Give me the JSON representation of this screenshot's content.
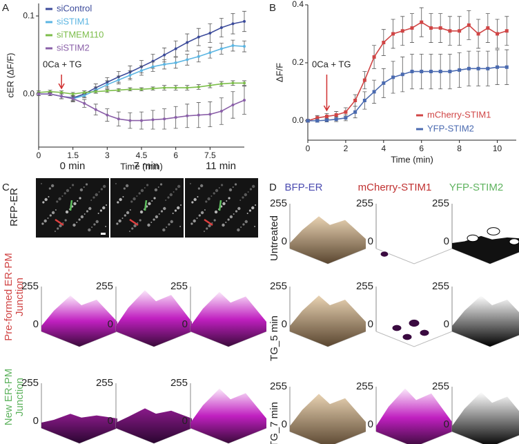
{
  "panel_labels": [
    "A",
    "B",
    "C",
    "D"
  ],
  "chart_data": [
    {
      "type": "line",
      "ylabel": "cER (ΔF/F)",
      "xlabel": "Time (min)",
      "x": [
        0,
        0.5,
        1,
        1.5,
        2,
        2.5,
        3,
        3.5,
        4,
        4.5,
        5,
        5.5,
        6,
        6.5,
        7,
        7.5,
        8,
        8.5,
        9
      ],
      "xlim": [
        0,
        9
      ],
      "xticks": [
        0,
        1.5,
        3,
        4.5,
        6,
        7.5
      ],
      "ylim": [
        -0.068,
        0.116
      ],
      "yticks": [
        {
          "value": 0,
          "label": "0.0"
        },
        0.1
      ],
      "legend": "upper left",
      "marker": "circle",
      "annotation": {
        "text": "0Ca + TG",
        "x": 1
      },
      "series": [
        {
          "name": "siControl",
          "color": "#3c4b9b",
          "values": [
            0,
            0,
            -0.003,
            -0.005,
            0,
            0.008,
            0.015,
            0.022,
            0.028,
            0.035,
            0.042,
            0.05,
            0.058,
            0.066,
            0.073,
            0.078,
            0.085,
            0.09,
            0.093
          ],
          "errors": [
            0.002,
            0.002,
            0.003,
            0.003,
            0.004,
            0.005,
            0.006,
            0.007,
            0.008,
            0.008,
            0.009,
            0.009,
            0.01,
            0.011,
            0.011,
            0.012,
            0.012,
            0.013,
            0.013
          ]
        },
        {
          "name": "siSTIM1",
          "color": "#5bb5e2",
          "values": [
            0,
            0,
            -0.003,
            -0.006,
            -0.002,
            0.005,
            0.012,
            0.018,
            0.024,
            0.03,
            0.035,
            0.038,
            0.04,
            0.044,
            0.048,
            0.053,
            0.058,
            0.062,
            0.061
          ],
          "errors": [
            0.002,
            0.002,
            0.003,
            0.003,
            0.003,
            0.004,
            0.005,
            0.005,
            0.006,
            0.006,
            0.006,
            0.006,
            0.007,
            0.007,
            0.007,
            0.007,
            0.007,
            0.007,
            0.007
          ]
        },
        {
          "name": "siTMEM110",
          "color": "#7cbd4a",
          "values": [
            0.002,
            0.003,
            0.002,
            0,
            0.002,
            0.003,
            0.004,
            0.005,
            0.006,
            0.006,
            0.007,
            0.008,
            0.008,
            0.008,
            0.009,
            0.011,
            0.013,
            0.014,
            0.014
          ],
          "errors": [
            0.002,
            0.002,
            0.002,
            0.002,
            0.002,
            0.002,
            0.002,
            0.002,
            0.002,
            0.002,
            0.002,
            0.003,
            0.003,
            0.003,
            0.003,
            0.003,
            0.003,
            0.003,
            0.003
          ]
        },
        {
          "name": "siSTIM2",
          "color": "#8a5fa8",
          "values": [
            0,
            0,
            -0.003,
            -0.006,
            -0.012,
            -0.02,
            -0.027,
            -0.032,
            -0.034,
            -0.034,
            -0.033,
            -0.032,
            -0.03,
            -0.028,
            -0.027,
            -0.026,
            -0.022,
            -0.014,
            -0.008
          ],
          "errors": [
            0.002,
            0.002,
            0.003,
            0.004,
            0.005,
            0.007,
            0.008,
            0.009,
            0.01,
            0.011,
            0.012,
            0.013,
            0.014,
            0.015,
            0.016,
            0.016,
            0.017,
            0.017,
            0.018
          ]
        }
      ]
    },
    {
      "type": "line",
      "ylabel": "ΔF/F",
      "xlabel": "Time (min)",
      "x": [
        0,
        0.5,
        1,
        1.5,
        2,
        2.5,
        3,
        3.5,
        4,
        4.5,
        5,
        5.5,
        6,
        6.5,
        7,
        7.5,
        8,
        8.5,
        9,
        9.5,
        10,
        10.5
      ],
      "xlim": [
        0,
        11
      ],
      "xticks": [
        0,
        2,
        4,
        6,
        8,
        10
      ],
      "ylim": [
        -0.067,
        0.4
      ],
      "yticks": [
        {
          "value": 0,
          "label": "0.0"
        },
        0.2,
        0.4
      ],
      "legend": "lower right",
      "marker": "square",
      "annotation": {
        "text": "0Ca + TG",
        "x": 1
      },
      "series": [
        {
          "name": "mCherry-STIM1",
          "color": "#d04545",
          "values": [
            0,
            0.01,
            0.015,
            0.02,
            0.03,
            0.07,
            0.14,
            0.22,
            0.27,
            0.3,
            0.31,
            0.32,
            0.34,
            0.32,
            0.32,
            0.31,
            0.31,
            0.33,
            0.3,
            0.32,
            0.3,
            0.31
          ],
          "errors": [
            0.005,
            0.008,
            0.01,
            0.012,
            0.015,
            0.02,
            0.03,
            0.04,
            0.045,
            0.05,
            0.05,
            0.05,
            0.05,
            0.05,
            0.05,
            0.05,
            0.05,
            0.05,
            0.05,
            0.05,
            0.05,
            0.05
          ]
        },
        {
          "name": "YFP-STIM2",
          "color": "#4a6ab0",
          "values": [
            0,
            0,
            0.002,
            0.005,
            0.01,
            0.03,
            0.07,
            0.1,
            0.13,
            0.15,
            0.16,
            0.17,
            0.17,
            0.17,
            0.17,
            0.17,
            0.175,
            0.18,
            0.18,
            0.18,
            0.185,
            0.185
          ],
          "errors": [
            0.004,
            0.005,
            0.006,
            0.008,
            0.01,
            0.02,
            0.03,
            0.04,
            0.05,
            0.055,
            0.06,
            0.06,
            0.06,
            0.06,
            0.06,
            0.06,
            0.06,
            0.06,
            0.06,
            0.06,
            0.06,
            0.06
          ]
        }
      ]
    }
  ],
  "panel_c": {
    "columns": [
      "0 min",
      "7 min",
      "11 min"
    ],
    "rows": [
      [
        "RFP-ER"
      ],
      [
        "Pre-formed ER-PM",
        "Junction"
      ],
      [
        "New ER-PM",
        "Junction"
      ]
    ],
    "zticks": [
      0,
      255
    ]
  },
  "panel_d": {
    "columns": [
      "BFP-ER",
      "mCherry-STIM1",
      "YFP-STIM2"
    ],
    "rows": [
      "Untreated",
      "TG_5 min",
      "TG_7 min"
    ],
    "zticks": [
      0,
      255
    ]
  }
}
